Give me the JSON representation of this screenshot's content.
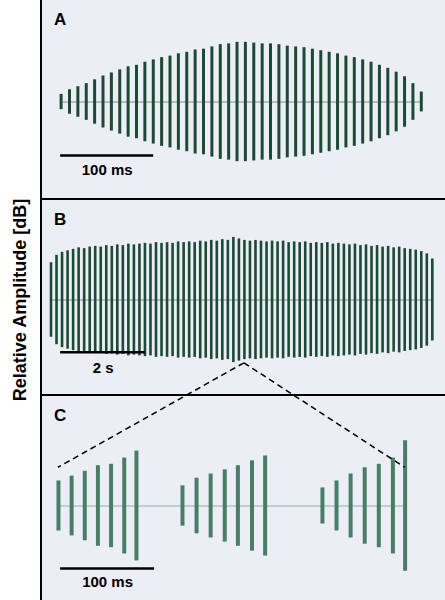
{
  "chart_data": [
    {
      "type": "waveform",
      "title": "A",
      "x": [
        0,
        9,
        18,
        27,
        36,
        45,
        54,
        63,
        72,
        81,
        90,
        99,
        108,
        117,
        126,
        135,
        144,
        153,
        162,
        171,
        180,
        189,
        198,
        207,
        216,
        225,
        234,
        243,
        252,
        261,
        270,
        279,
        288,
        297,
        306,
        315,
        324,
        333,
        342,
        351,
        360,
        369,
        378,
        387
      ],
      "values": [
        0.1,
        0.16,
        0.2,
        0.24,
        0.29,
        0.34,
        0.38,
        0.42,
        0.46,
        0.48,
        0.52,
        0.55,
        0.58,
        0.6,
        0.63,
        0.65,
        0.68,
        0.69,
        0.72,
        0.75,
        0.76,
        0.78,
        0.78,
        0.77,
        0.76,
        0.76,
        0.75,
        0.73,
        0.72,
        0.71,
        0.69,
        0.67,
        0.65,
        0.63,
        0.6,
        0.58,
        0.55,
        0.52,
        0.48,
        0.44,
        0.39,
        0.33,
        0.24,
        0.13
      ],
      "xlim": [
        -20,
        413
      ],
      "ylim": [
        -1,
        1
      ],
      "color": "#1d4a35",
      "tick_labels": false,
      "scale_bar": {
        "length": 100,
        "label": "100 ms"
      }
    },
    {
      "type": "waveform",
      "title": "B",
      "ylabel": "Relative Amplitude [dB]",
      "x": [
        0,
        0.13,
        0.26,
        0.39,
        0.52,
        0.65,
        0.78,
        0.91,
        1.04,
        1.17,
        1.3,
        1.43,
        1.56,
        1.69,
        1.82,
        1.95,
        2.08,
        2.21,
        2.34,
        2.47,
        2.6,
        2.73,
        2.86,
        2.99,
        3.12,
        3.25,
        3.38,
        3.51,
        3.64,
        3.77,
        3.9,
        4.03,
        4.16,
        4.29,
        4.42,
        4.55,
        4.68,
        4.81,
        4.94,
        5.07,
        5.2,
        5.33,
        5.46,
        5.59,
        5.72,
        5.85,
        5.98,
        6.11,
        6.24,
        6.37,
        6.5,
        6.63,
        6.76,
        6.89,
        7.02,
        7.15,
        7.28,
        7.41,
        7.54,
        7.67,
        7.8,
        7.93,
        8.06,
        8.19,
        8.32,
        8.45,
        8.58,
        8.71,
        8.84,
        8.97
      ],
      "values": [
        0.5,
        0.6,
        0.64,
        0.66,
        0.68,
        0.7,
        0.69,
        0.71,
        0.72,
        0.71,
        0.73,
        0.72,
        0.74,
        0.73,
        0.75,
        0.74,
        0.75,
        0.76,
        0.75,
        0.77,
        0.76,
        0.77,
        0.76,
        0.78,
        0.77,
        0.78,
        0.77,
        0.79,
        0.78,
        0.8,
        0.79,
        0.81,
        0.8,
        0.84,
        0.82,
        0.8,
        0.79,
        0.8,
        0.79,
        0.78,
        0.79,
        0.78,
        0.79,
        0.77,
        0.78,
        0.77,
        0.78,
        0.76,
        0.77,
        0.76,
        0.77,
        0.75,
        0.76,
        0.75,
        0.74,
        0.75,
        0.73,
        0.74,
        0.72,
        0.73,
        0.71,
        0.72,
        0.7,
        0.71,
        0.69,
        0.68,
        0.67,
        0.65,
        0.62,
        0.55
      ],
      "xlim": [
        -0.2,
        9.28
      ],
      "ylim": [
        -1,
        1
      ],
      "color": "#1d4a35",
      "tick_labels": false,
      "scale_bar": {
        "length": 2,
        "label": "2 s"
      },
      "zoom_at": 4.55
    },
    {
      "type": "waveform",
      "title": "C",
      "x": [
        3,
        17,
        31,
        45,
        59,
        73,
        86,
        135,
        150,
        165,
        180,
        194,
        209,
        223,
        284,
        299,
        314,
        329,
        344,
        359,
        372
      ],
      "values": [
        0.36,
        0.43,
        0.5,
        0.58,
        0.6,
        0.69,
        0.79,
        0.29,
        0.4,
        0.46,
        0.52,
        0.58,
        0.65,
        0.72,
        0.26,
        0.36,
        0.46,
        0.55,
        0.6,
        0.69,
        0.94
      ],
      "xlim": [
        -14,
        415
      ],
      "ylim": [
        -1,
        1
      ],
      "color": "#4a7d66",
      "tick_labels": false,
      "scale_bar": {
        "length": 100,
        "label": "100 ms"
      }
    }
  ]
}
